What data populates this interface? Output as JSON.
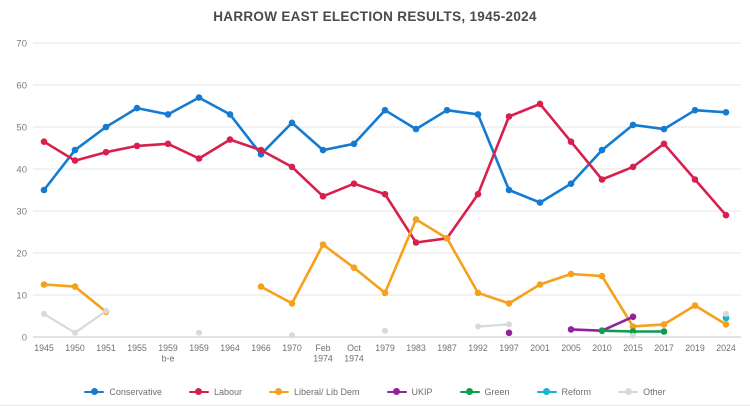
{
  "chart_data": {
    "type": "line",
    "title": "HARROW EAST ELECTION RESULTS, 1945-2024",
    "categories": [
      "1945",
      "1950",
      "1951",
      "1955",
      "1959 b-e",
      "1959",
      "1964",
      "1966",
      "1970",
      "Feb 1974",
      "Oct 1974",
      "1979",
      "1983",
      "1987",
      "1992",
      "1997",
      "2001",
      "2005",
      "2010",
      "2015",
      "2017",
      "2019",
      "2024"
    ],
    "category_labels": [
      [
        "1945"
      ],
      [
        "1950"
      ],
      [
        "1951"
      ],
      [
        "1955"
      ],
      [
        "1959",
        "b-e"
      ],
      [
        "1959"
      ],
      [
        "1964"
      ],
      [
        "1966"
      ],
      [
        "1970"
      ],
      [
        "Feb",
        "1974"
      ],
      [
        "Oct",
        "1974"
      ],
      [
        "1979"
      ],
      [
        "1983"
      ],
      [
        "1987"
      ],
      [
        "1992"
      ],
      [
        "1997"
      ],
      [
        "2001"
      ],
      [
        "2005"
      ],
      [
        "2010"
      ],
      [
        "2015"
      ],
      [
        "2017"
      ],
      [
        "2019"
      ],
      [
        "2024"
      ]
    ],
    "ylabel": "",
    "xlabel": "",
    "ylim": [
      0,
      70
    ],
    "yticks": [
      0,
      10,
      20,
      30,
      40,
      50,
      60,
      70
    ],
    "grid": true,
    "legend_position": "bottom",
    "series": [
      {
        "name": "Conservative",
        "color": "#147bd1",
        "values": [
          35,
          44.5,
          50,
          54.5,
          53,
          57,
          53,
          43.5,
          51,
          44.5,
          46,
          54,
          49.5,
          54,
          53,
          35,
          32,
          36.5,
          44.5,
          50.5,
          49.5,
          54,
          53.5
        ]
      },
      {
        "name": "Labour",
        "color": "#d91f4c",
        "values": [
          46.5,
          42,
          44,
          45.5,
          46,
          42.5,
          47,
          44.5,
          40.5,
          33.5,
          36.5,
          34,
          22.5,
          23.5,
          34,
          52.5,
          55.5,
          46.5,
          37.5,
          40.5,
          46,
          37.5,
          29
        ]
      },
      {
        "name": "Liberal/ Lib Dem",
        "color": "#f6a01b",
        "values": [
          12.5,
          12,
          6,
          null,
          null,
          null,
          null,
          12,
          8,
          22,
          16.5,
          10.5,
          28,
          23.5,
          10.5,
          8,
          12.5,
          15,
          14.5,
          2.5,
          3,
          7.5,
          3
        ]
      },
      {
        "name": "UKIP",
        "color": "#93209c",
        "values": [
          null,
          null,
          null,
          null,
          null,
          null,
          null,
          null,
          null,
          null,
          null,
          null,
          null,
          null,
          null,
          1,
          null,
          1.8,
          1.5,
          4.8,
          null,
          null,
          null
        ]
      },
      {
        "name": "Green",
        "color": "#0b9e4e",
        "values": [
          null,
          null,
          null,
          null,
          null,
          null,
          null,
          null,
          null,
          null,
          null,
          null,
          null,
          null,
          null,
          null,
          null,
          null,
          1.5,
          1.3,
          1.3,
          null,
          null
        ]
      },
      {
        "name": "Reform",
        "color": "#15b5d0",
        "values": [
          null,
          null,
          null,
          null,
          null,
          null,
          null,
          null,
          null,
          null,
          null,
          null,
          null,
          null,
          null,
          null,
          null,
          null,
          null,
          null,
          null,
          null,
          4.5
        ]
      },
      {
        "name": "Other",
        "color": "#d9d9d9",
        "values": [
          5.5,
          1,
          6.2,
          null,
          null,
          1,
          null,
          null,
          0.4,
          null,
          null,
          1.5,
          null,
          null,
          2.5,
          3,
          null,
          null,
          null,
          0.3,
          null,
          null,
          5.5
        ]
      }
    ]
  }
}
